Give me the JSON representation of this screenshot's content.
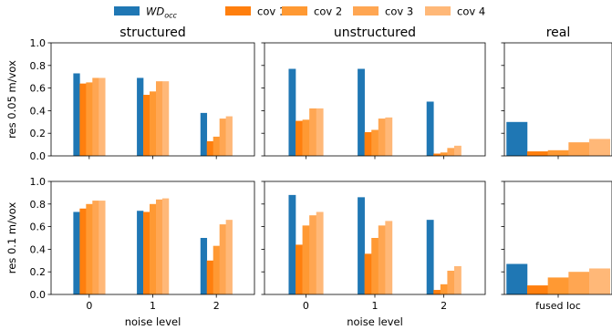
{
  "chart_data": {
    "type": "bar",
    "colors": {
      "WD_occ": "#1f77b4",
      "cov 1": "#ff7f0e",
      "cov 2": "#ff9933",
      "cov 3": "#ffa652",
      "cov 4": "#ffb878"
    },
    "legend": {
      "placement": "top-center",
      "entries": [
        {
          "key": "WD_occ",
          "main": "WD",
          "sub": "occ"
        },
        {
          "key": "cov 1",
          "text": "cov 1"
        },
        {
          "key": "cov 2",
          "text": "cov 2"
        },
        {
          "key": "cov 3",
          "text": "cov 3"
        },
        {
          "key": "cov 4",
          "text": "cov 4"
        }
      ]
    },
    "ylim": [
      0,
      1.0
    ],
    "yticks": [
      "0.0",
      "0.2",
      "0.4",
      "0.6",
      "0.8",
      "1.0"
    ],
    "column_titles": [
      "structured",
      "unstructured",
      "real"
    ],
    "row_ylabels": [
      "res 0.05 m/vox",
      "res 0.1 m/vox"
    ],
    "xlabels": [
      "noise level",
      "noise level",
      ""
    ],
    "grid": false,
    "panels": [
      {
        "row": 0,
        "col": 0,
        "categories": [
          "0",
          "1",
          "2"
        ],
        "series": [
          {
            "name": "WD_occ",
            "values": [
              0.73,
              0.69,
              0.38
            ]
          },
          {
            "name": "cov 1",
            "values": [
              0.64,
              0.54,
              0.13
            ]
          },
          {
            "name": "cov 2",
            "values": [
              0.65,
              0.57,
              0.17
            ]
          },
          {
            "name": "cov 3",
            "values": [
              0.69,
              0.66,
              0.33
            ]
          },
          {
            "name": "cov 4",
            "values": [
              0.69,
              0.66,
              0.35
            ]
          }
        ]
      },
      {
        "row": 0,
        "col": 1,
        "categories": [
          "0",
          "1",
          "2"
        ],
        "series": [
          {
            "name": "WD_occ",
            "values": [
              0.77,
              0.77,
              0.48
            ]
          },
          {
            "name": "cov 1",
            "values": [
              0.31,
              0.21,
              0.02
            ]
          },
          {
            "name": "cov 2",
            "values": [
              0.32,
              0.23,
              0.03
            ]
          },
          {
            "name": "cov 3",
            "values": [
              0.42,
              0.33,
              0.07
            ]
          },
          {
            "name": "cov 4",
            "values": [
              0.42,
              0.34,
              0.09
            ]
          }
        ]
      },
      {
        "row": 0,
        "col": 2,
        "categories": [
          "fused loc"
        ],
        "series": [
          {
            "name": "WD_occ",
            "values": [
              0.3
            ]
          },
          {
            "name": "cov 1",
            "values": [
              0.04
            ]
          },
          {
            "name": "cov 2",
            "values": [
              0.05
            ]
          },
          {
            "name": "cov 3",
            "values": [
              0.12
            ]
          },
          {
            "name": "cov 4",
            "values": [
              0.15
            ]
          }
        ]
      },
      {
        "row": 1,
        "col": 0,
        "categories": [
          "0",
          "1",
          "2"
        ],
        "series": [
          {
            "name": "WD_occ",
            "values": [
              0.73,
              0.74,
              0.5
            ]
          },
          {
            "name": "cov 1",
            "values": [
              0.76,
              0.73,
              0.3
            ]
          },
          {
            "name": "cov 2",
            "values": [
              0.8,
              0.8,
              0.43
            ]
          },
          {
            "name": "cov 3",
            "values": [
              0.83,
              0.84,
              0.62
            ]
          },
          {
            "name": "cov 4",
            "values": [
              0.83,
              0.85,
              0.66
            ]
          }
        ]
      },
      {
        "row": 1,
        "col": 1,
        "categories": [
          "0",
          "1",
          "2"
        ],
        "series": [
          {
            "name": "WD_occ",
            "values": [
              0.88,
              0.86,
              0.66
            ]
          },
          {
            "name": "cov 1",
            "values": [
              0.44,
              0.36,
              0.04
            ]
          },
          {
            "name": "cov 2",
            "values": [
              0.61,
              0.5,
              0.09
            ]
          },
          {
            "name": "cov 3",
            "values": [
              0.7,
              0.61,
              0.21
            ]
          },
          {
            "name": "cov 4",
            "values": [
              0.73,
              0.65,
              0.25
            ]
          }
        ]
      },
      {
        "row": 1,
        "col": 2,
        "categories": [
          "fused loc"
        ],
        "series": [
          {
            "name": "WD_occ",
            "values": [
              0.27
            ]
          },
          {
            "name": "cov 1",
            "values": [
              0.08
            ]
          },
          {
            "name": "cov 2",
            "values": [
              0.15
            ]
          },
          {
            "name": "cov 3",
            "values": [
              0.2
            ]
          },
          {
            "name": "cov 4",
            "values": [
              0.23
            ]
          }
        ]
      }
    ]
  }
}
